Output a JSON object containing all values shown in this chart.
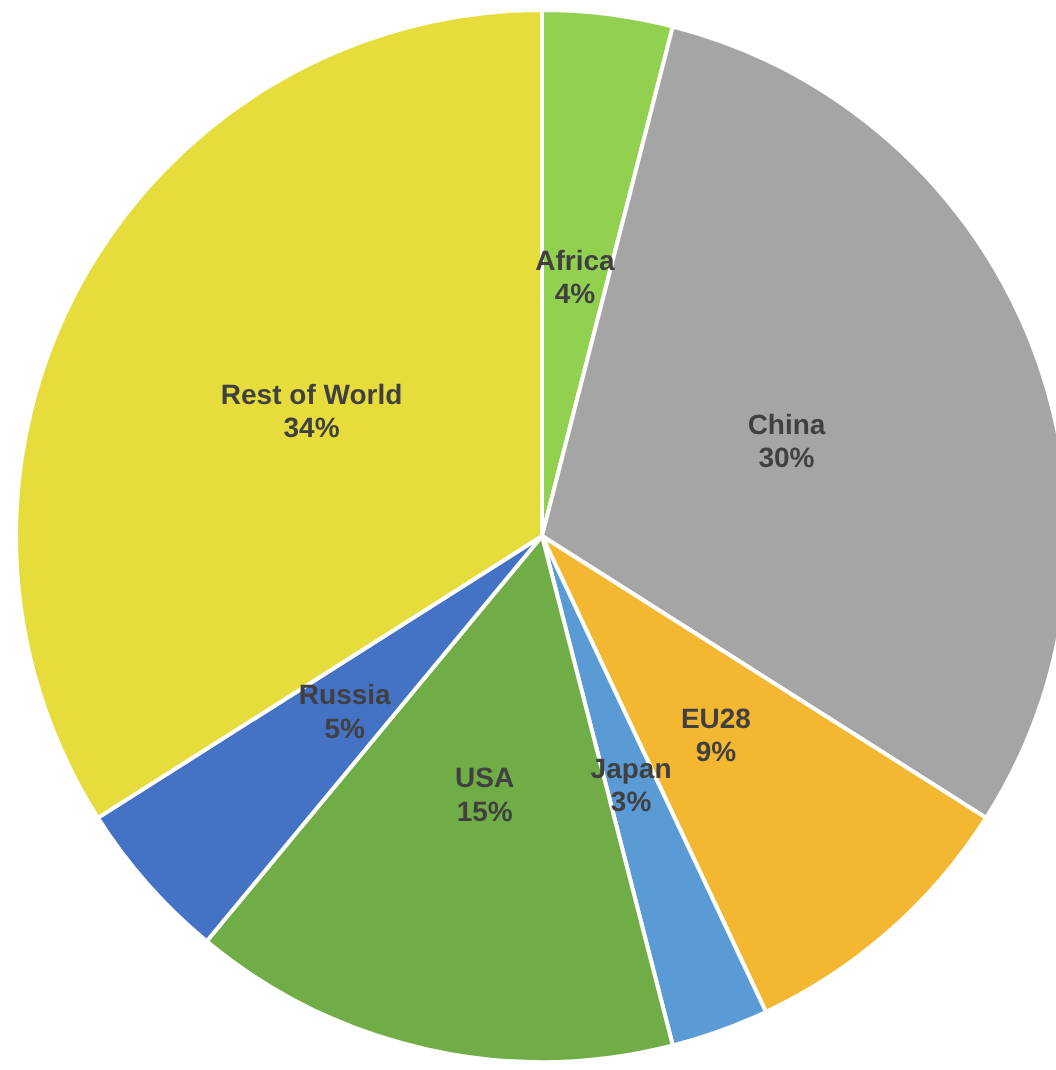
{
  "chart_data": {
    "type": "pie",
    "categories": [
      "Africa",
      "China",
      "EU28",
      "Japan",
      "USA",
      "Russia",
      "Rest of World"
    ],
    "values": [
      4,
      30,
      9,
      3,
      15,
      5,
      34
    ],
    "value_labels": [
      "4%",
      "30%",
      "9%",
      "3%",
      "15%",
      "5%",
      "34%"
    ],
    "colors": [
      "#92d050",
      "#a5a5a5",
      "#f4b732",
      "#5b9bd5",
      "#70ad47",
      "#4472c4",
      "#e6dc3c"
    ],
    "legend": false
  }
}
